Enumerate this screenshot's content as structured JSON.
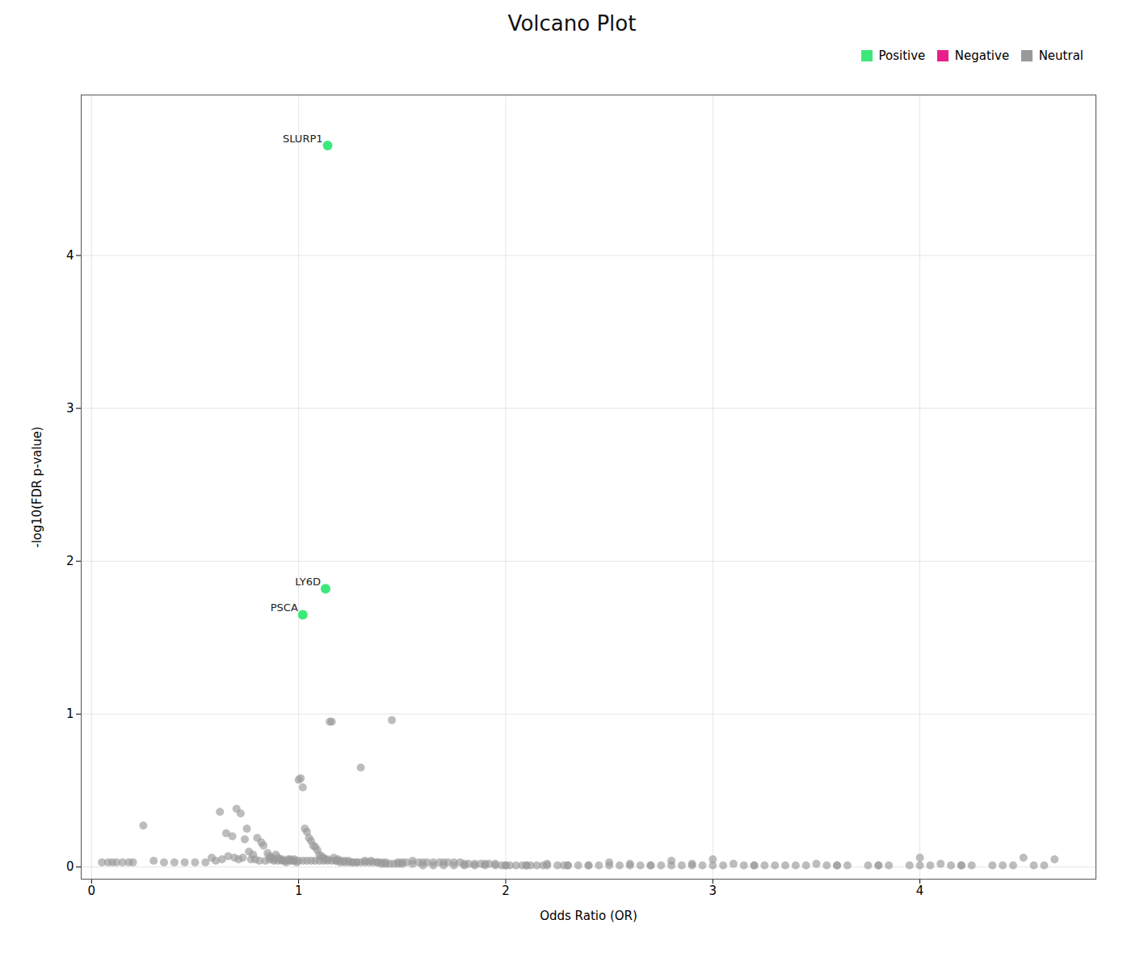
{
  "chart_data": {
    "type": "scatter",
    "title": "Volcano Plot",
    "xlabel": "Odds Ratio (OR)",
    "ylabel": "-log10(FDR p-value)",
    "xlim": [
      -0.05,
      4.85
    ],
    "ylim": [
      -0.08,
      5.05
    ],
    "xticks": [
      0,
      1,
      2,
      3,
      4
    ],
    "yticks": [
      0,
      1,
      2,
      3,
      4
    ],
    "grid": true,
    "legend": "upper right",
    "series": [
      {
        "name": "Positive",
        "color": "#3de87a",
        "points": [
          [
            1.14,
            4.72
          ],
          [
            1.13,
            1.82
          ],
          [
            1.02,
            1.65
          ]
        ],
        "labels": [
          "SLURP1",
          "LY6D",
          "PSCA"
        ]
      },
      {
        "name": "Negative",
        "color": "#e91e8c",
        "points": []
      },
      {
        "name": "Neutral",
        "color": "#999999",
        "points": [
          [
            0.25,
            0.27
          ],
          [
            0.62,
            0.36
          ],
          [
            0.65,
            0.22
          ],
          [
            0.68,
            0.2
          ],
          [
            0.7,
            0.38
          ],
          [
            0.72,
            0.35
          ],
          [
            0.74,
            0.18
          ],
          [
            0.75,
            0.25
          ],
          [
            0.76,
            0.1
          ],
          [
            0.78,
            0.08
          ],
          [
            0.8,
            0.19
          ],
          [
            0.82,
            0.16
          ],
          [
            0.83,
            0.14
          ],
          [
            0.85,
            0.09
          ],
          [
            0.86,
            0.07
          ],
          [
            0.87,
            0.06
          ],
          [
            0.88,
            0.05
          ],
          [
            0.89,
            0.08
          ],
          [
            0.9,
            0.06
          ],
          [
            0.91,
            0.05
          ],
          [
            0.92,
            0.04
          ],
          [
            0.93,
            0.04
          ],
          [
            0.94,
            0.03
          ],
          [
            0.95,
            0.05
          ],
          [
            0.96,
            0.04
          ],
          [
            0.97,
            0.04
          ],
          [
            0.98,
            0.04
          ],
          [
            0.99,
            0.03
          ],
          [
            1.0,
            0.57
          ],
          [
            1.01,
            0.58
          ],
          [
            1.02,
            0.52
          ],
          [
            1.03,
            0.25
          ],
          [
            1.04,
            0.23
          ],
          [
            1.05,
            0.19
          ],
          [
            1.06,
            0.17
          ],
          [
            1.07,
            0.14
          ],
          [
            1.08,
            0.13
          ],
          [
            1.09,
            0.11
          ],
          [
            1.1,
            0.08
          ],
          [
            1.11,
            0.07
          ],
          [
            1.12,
            0.06
          ],
          [
            1.13,
            0.05
          ],
          [
            1.14,
            0.05
          ],
          [
            1.15,
            0.95
          ],
          [
            1.16,
            0.95
          ],
          [
            1.17,
            0.06
          ],
          [
            1.18,
            0.04
          ],
          [
            1.19,
            0.05
          ],
          [
            1.2,
            0.04
          ],
          [
            1.22,
            0.04
          ],
          [
            1.24,
            0.04
          ],
          [
            1.26,
            0.03
          ],
          [
            1.28,
            0.03
          ],
          [
            1.3,
            0.65
          ],
          [
            1.32,
            0.04
          ],
          [
            1.35,
            0.04
          ],
          [
            1.38,
            0.03
          ],
          [
            1.4,
            0.03
          ],
          [
            1.42,
            0.03
          ],
          [
            1.45,
            0.96
          ],
          [
            1.48,
            0.03
          ],
          [
            1.5,
            0.03
          ],
          [
            1.55,
            0.04
          ],
          [
            1.6,
            0.03
          ],
          [
            1.65,
            0.03
          ],
          [
            1.7,
            0.03
          ],
          [
            1.75,
            0.03
          ],
          [
            1.8,
            0.02
          ],
          [
            1.85,
            0.02
          ],
          [
            1.9,
            0.02
          ],
          [
            1.95,
            0.02
          ],
          [
            2.0,
            0.01
          ],
          [
            2.05,
            0.01
          ],
          [
            2.1,
            0.01
          ],
          [
            2.15,
            0.01
          ],
          [
            2.2,
            0.02
          ],
          [
            2.25,
            0.01
          ],
          [
            2.3,
            0.01
          ],
          [
            2.4,
            0.01
          ],
          [
            2.5,
            0.03
          ],
          [
            2.55,
            0.01
          ],
          [
            2.6,
            0.02
          ],
          [
            2.7,
            0.01
          ],
          [
            2.8,
            0.04
          ],
          [
            2.9,
            0.02
          ],
          [
            3.0,
            0.05
          ],
          [
            3.1,
            0.02
          ],
          [
            3.2,
            0.01
          ],
          [
            3.3,
            0.01
          ],
          [
            3.5,
            0.02
          ],
          [
            3.6,
            0.01
          ],
          [
            3.8,
            0.01
          ],
          [
            4.0,
            0.06
          ],
          [
            4.1,
            0.02
          ],
          [
            4.2,
            0.01
          ],
          [
            4.5,
            0.06
          ],
          [
            0.05,
            0.03
          ],
          [
            0.08,
            0.03
          ],
          [
            0.1,
            0.03
          ],
          [
            0.12,
            0.03
          ],
          [
            0.15,
            0.03
          ],
          [
            0.18,
            0.03
          ],
          [
            0.2,
            0.03
          ],
          [
            0.3,
            0.04
          ],
          [
            0.35,
            0.03
          ],
          [
            0.4,
            0.03
          ],
          [
            0.45,
            0.03
          ],
          [
            0.5,
            0.03
          ],
          [
            0.55,
            0.03
          ],
          [
            1.52,
            0.03
          ],
          [
            1.58,
            0.03
          ],
          [
            1.62,
            0.03
          ],
          [
            1.68,
            0.03
          ],
          [
            1.72,
            0.03
          ],
          [
            1.78,
            0.03
          ],
          [
            1.82,
            0.02
          ],
          [
            1.88,
            0.02
          ],
          [
            1.92,
            0.02
          ],
          [
            1.98,
            0.01
          ],
          [
            2.02,
            0.01
          ],
          [
            2.08,
            0.01
          ],
          [
            2.12,
            0.01
          ],
          [
            2.18,
            0.01
          ],
          [
            2.28,
            0.01
          ],
          [
            2.35,
            0.01
          ],
          [
            2.45,
            0.01
          ],
          [
            2.65,
            0.01
          ],
          [
            2.75,
            0.01
          ],
          [
            2.85,
            0.01
          ],
          [
            2.95,
            0.01
          ],
          [
            3.05,
            0.01
          ],
          [
            3.15,
            0.01
          ],
          [
            3.25,
            0.01
          ],
          [
            3.35,
            0.01
          ],
          [
            3.45,
            0.01
          ],
          [
            3.55,
            0.01
          ],
          [
            3.65,
            0.01
          ],
          [
            3.75,
            0.01
          ],
          [
            3.85,
            0.01
          ],
          [
            3.95,
            0.01
          ],
          [
            4.05,
            0.01
          ],
          [
            4.15,
            0.01
          ],
          [
            4.25,
            0.01
          ],
          [
            4.35,
            0.01
          ],
          [
            4.45,
            0.01
          ],
          [
            4.55,
            0.01
          ],
          [
            4.65,
            0.05
          ],
          [
            0.58,
            0.06
          ],
          [
            0.6,
            0.04
          ],
          [
            0.63,
            0.05
          ],
          [
            0.66,
            0.07
          ],
          [
            0.69,
            0.06
          ],
          [
            0.71,
            0.05
          ],
          [
            0.73,
            0.06
          ],
          [
            0.77,
            0.05
          ],
          [
            0.79,
            0.05
          ],
          [
            0.81,
            0.04
          ],
          [
            0.84,
            0.04
          ],
          [
            0.86,
            0.05
          ],
          [
            0.88,
            0.04
          ],
          [
            0.9,
            0.04
          ],
          [
            0.92,
            0.05
          ],
          [
            0.94,
            0.04
          ],
          [
            0.96,
            0.05
          ],
          [
            0.98,
            0.05
          ],
          [
            1.0,
            0.04
          ],
          [
            1.02,
            0.04
          ],
          [
            1.04,
            0.04
          ],
          [
            1.06,
            0.04
          ],
          [
            1.08,
            0.04
          ],
          [
            1.1,
            0.04
          ],
          [
            1.12,
            0.04
          ],
          [
            1.14,
            0.04
          ],
          [
            1.16,
            0.04
          ],
          [
            1.18,
            0.04
          ],
          [
            1.2,
            0.03
          ],
          [
            1.22,
            0.03
          ],
          [
            1.24,
            0.03
          ],
          [
            1.26,
            0.03
          ],
          [
            1.28,
            0.03
          ],
          [
            1.3,
            0.03
          ],
          [
            1.32,
            0.03
          ],
          [
            1.34,
            0.03
          ],
          [
            1.36,
            0.03
          ],
          [
            1.38,
            0.03
          ],
          [
            1.4,
            0.02
          ],
          [
            1.42,
            0.02
          ],
          [
            1.44,
            0.02
          ],
          [
            1.46,
            0.02
          ],
          [
            1.48,
            0.02
          ],
          [
            1.5,
            0.02
          ],
          [
            1.55,
            0.02
          ],
          [
            1.6,
            0.01
          ],
          [
            1.65,
            0.01
          ],
          [
            1.7,
            0.01
          ],
          [
            1.75,
            0.01
          ],
          [
            1.8,
            0.01
          ],
          [
            1.85,
            0.01
          ],
          [
            1.9,
            0.01
          ],
          [
            1.95,
            0.01
          ],
          [
            2.0,
            0.01
          ],
          [
            2.1,
            0.01
          ],
          [
            2.2,
            0.01
          ],
          [
            2.3,
            0.01
          ],
          [
            2.4,
            0.01
          ],
          [
            2.5,
            0.01
          ],
          [
            2.6,
            0.01
          ],
          [
            2.7,
            0.01
          ],
          [
            2.8,
            0.01
          ],
          [
            2.9,
            0.01
          ],
          [
            3.0,
            0.01
          ],
          [
            3.2,
            0.01
          ],
          [
            3.4,
            0.01
          ],
          [
            3.6,
            0.01
          ],
          [
            3.8,
            0.01
          ],
          [
            4.0,
            0.01
          ],
          [
            4.2,
            0.01
          ],
          [
            4.4,
            0.01
          ],
          [
            4.6,
            0.01
          ]
        ]
      }
    ]
  }
}
